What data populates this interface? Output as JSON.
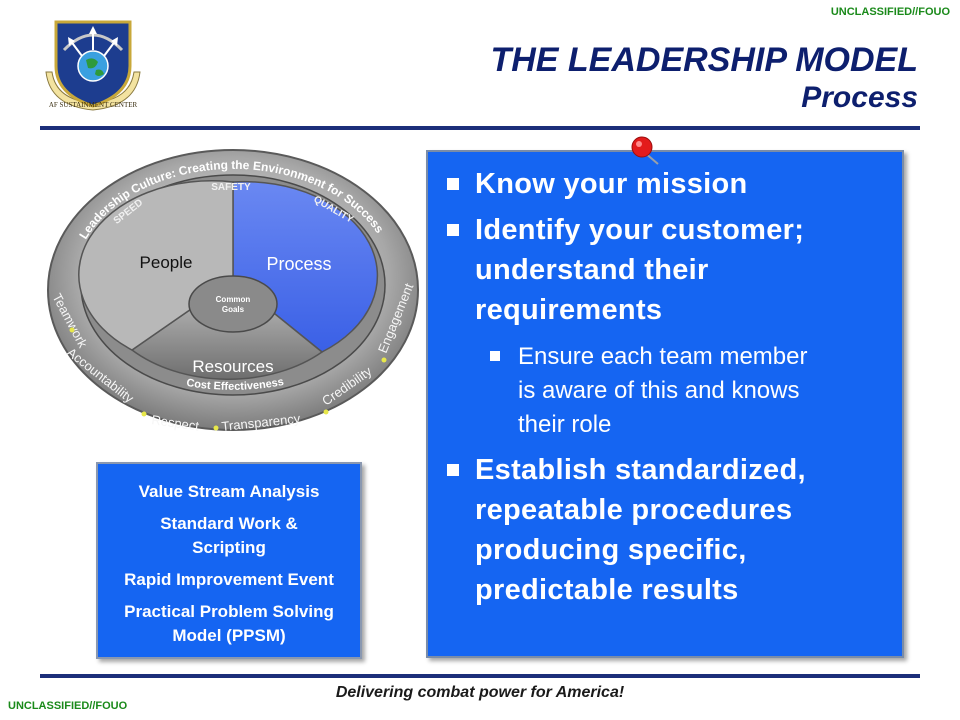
{
  "classification": {
    "top": "UNCLASSIFIED//FOUO",
    "bottom": "UNCLASSIFIED//FOUO"
  },
  "logo": {
    "text": "AF SUSTAINMENT CENTER"
  },
  "title": {
    "main": "THE LEADERSHIP MODEL",
    "sub": "Process"
  },
  "diagram": {
    "arc_text": "Leadership Culture: Creating the Environment for Success",
    "ring_words": [
      "Teamwork",
      "Accountability",
      "Respect",
      "Transparency",
      "Credibility",
      "Engagement"
    ],
    "inner_ring": {
      "safety": "SAFETY",
      "speed": "SPEED",
      "quality": "QUALITY",
      "cost": "Cost Effectiveness"
    },
    "segments": {
      "people": "People",
      "process": "Process",
      "resources": "Resources"
    },
    "center": {
      "line1": "Common",
      "line2": "Goals"
    }
  },
  "bullets": [
    {
      "level": 1,
      "lines": [
        "Know your mission"
      ]
    },
    {
      "level": 1,
      "lines": [
        "Identify your customer;",
        "understand their",
        "requirements"
      ]
    },
    {
      "level": 2,
      "lines": [
        "Ensure each team member",
        "is aware of this and knows",
        "their role"
      ]
    },
    {
      "level": 1,
      "lines": [
        "Establish standardized,",
        "repeatable procedures",
        "producing specific,",
        "predictable results"
      ]
    }
  ],
  "tools": [
    {
      "lines": [
        "Value Stream Analysis"
      ]
    },
    {
      "lines": [
        "Standard Work &",
        "Scripting"
      ]
    },
    {
      "lines": [
        "Rapid Improvement Event"
      ]
    },
    {
      "lines": [
        "Practical Problem Solving",
        "Model (PPSM)"
      ]
    }
  ],
  "footer": "Delivering combat power for America!",
  "colors": {
    "navy": "#1c2e7a",
    "panel_blue": "#1565f2",
    "classification_green": "#1a8a1a",
    "process_blue": "#4f74ee",
    "pushpin_red": "#e31b1b"
  }
}
